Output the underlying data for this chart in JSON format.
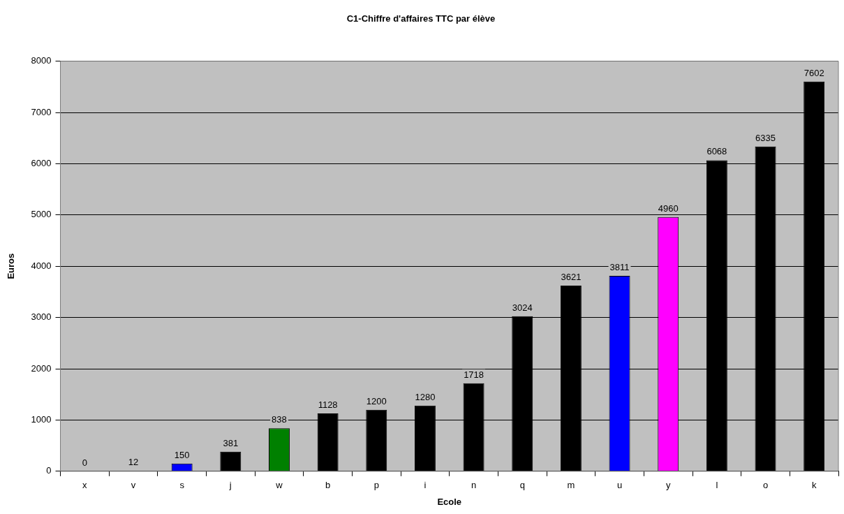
{
  "chart_data": {
    "type": "bar",
    "title": "C1-Chiffre d'affaires TTC par élève",
    "xlabel": "Ecole",
    "ylabel": "Euros",
    "categories": [
      "x",
      "v",
      "s",
      "j",
      "w",
      "b",
      "p",
      "i",
      "n",
      "q",
      "m",
      "u",
      "y",
      "l",
      "o",
      "k"
    ],
    "values": [
      0,
      12,
      150,
      381,
      838,
      1128,
      1200,
      1280,
      1718,
      3024,
      3621,
      3811,
      4960,
      6068,
      6335,
      7602
    ],
    "colors": [
      "#000000",
      "#000000",
      "#0000ff",
      "#000000",
      "#008000",
      "#000000",
      "#000000",
      "#000000",
      "#000000",
      "#000000",
      "#000000",
      "#0000ff",
      "#ff00ff",
      "#000000",
      "#000000",
      "#000000"
    ],
    "ylim": [
      0,
      8000
    ],
    "yticks": [
      0,
      1000,
      2000,
      3000,
      4000,
      5000,
      6000,
      7000,
      8000
    ],
    "grid": "y",
    "legend": false,
    "data_labels": true
  }
}
